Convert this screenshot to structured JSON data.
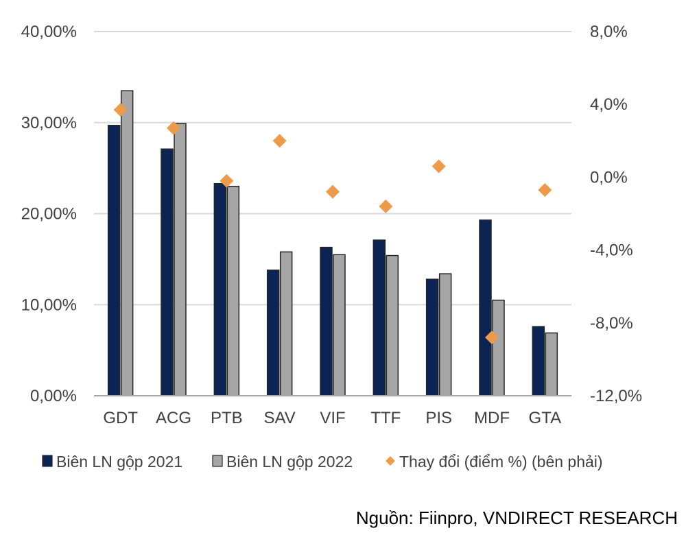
{
  "chart_data": {
    "type": "bar",
    "categories": [
      "GDT",
      "ACG",
      "PTB",
      "SAV",
      "VIF",
      "TTF",
      "PIS",
      "MDF",
      "GTA"
    ],
    "series": [
      {
        "name": "Biên LN gộp 2021",
        "type": "bar",
        "axis": "left",
        "color": "#0b2454",
        "values": [
          29.7,
          27.1,
          23.3,
          13.8,
          16.3,
          17.1,
          12.8,
          19.3,
          7.6
        ]
      },
      {
        "name": "Biên LN gộp 2022",
        "type": "bar",
        "axis": "left",
        "color": "#a6a6a6",
        "values": [
          33.5,
          29.9,
          23.0,
          15.8,
          15.5,
          15.4,
          13.4,
          10.5,
          6.9
        ]
      },
      {
        "name": "Thay đổi (điểm %) (bên phải)",
        "type": "scatter",
        "axis": "right",
        "color": "#ed9b4a",
        "values": [
          3.7,
          2.7,
          -0.2,
          2.0,
          -0.8,
          -1.6,
          0.6,
          -8.8,
          -0.7
        ]
      }
    ],
    "y_left": {
      "range": [
        0,
        40
      ],
      "ticks": [
        "0,00%",
        "10,00%",
        "20,00%",
        "30,00%",
        "40,00%"
      ]
    },
    "y_right": {
      "range": [
        -12,
        8
      ],
      "ticks": [
        "-12,0%",
        "-8,0%",
        "-4,0%",
        "0,0%",
        "4,0%",
        "8,0%"
      ]
    },
    "grid": true,
    "legend_position": "bottom",
    "source": "Nguồn:  Fiinpro, VNDIRECT RESEARCH"
  }
}
